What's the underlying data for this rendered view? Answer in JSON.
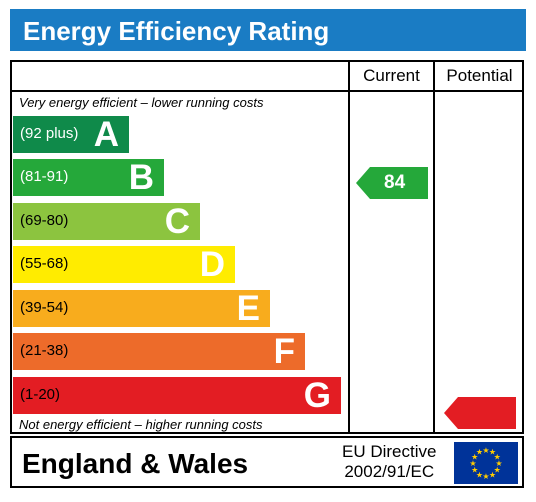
{
  "title": "Energy Efficiency Rating",
  "columns": {
    "current": "Current",
    "potential": "Potential"
  },
  "notes": {
    "top": "Very energy efficient – lower running costs",
    "bottom": "Not energy efficient – higher running costs"
  },
  "bands": [
    {
      "range": "(92 plus)",
      "letter": "A",
      "color": "#0f8a4a",
      "range_text_color": "#ffffff",
      "letter_color": "#ffffff"
    },
    {
      "range": "(81-91)",
      "letter": "B",
      "color": "#25a83a",
      "range_text_color": "#ffffff",
      "letter_color": "#ffffff"
    },
    {
      "range": "(69-80)",
      "letter": "C",
      "color": "#8cc43f",
      "range_text_color": "#000000",
      "letter_color": "#ffffff"
    },
    {
      "range": "(55-68)",
      "letter": "D",
      "color": "#ffec00",
      "range_text_color": "#000000",
      "letter_color": "#ffffff"
    },
    {
      "range": "(39-54)",
      "letter": "E",
      "color": "#f8ac1d",
      "range_text_color": "#000000",
      "letter_color": "#ffffff"
    },
    {
      "range": "(21-38)",
      "letter": "F",
      "color": "#ed6b2a",
      "range_text_color": "#000000",
      "letter_color": "#ffffff"
    },
    {
      "range": "(1-20)",
      "letter": "G",
      "color": "#e31d23",
      "range_text_color": "#000000",
      "letter_color": "#ffffff"
    }
  ],
  "current": {
    "value": "84",
    "color": "#25a83a"
  },
  "potential": {
    "value": "",
    "color": "#e31d23"
  },
  "footer": {
    "region": "England & Wales",
    "directive_line1": "EU Directive",
    "directive_line2": "2002/91/EC"
  },
  "eu_flag": {
    "background": "#003399",
    "stars": "#ffcc00",
    "icon": "eu-flag-icon"
  }
}
